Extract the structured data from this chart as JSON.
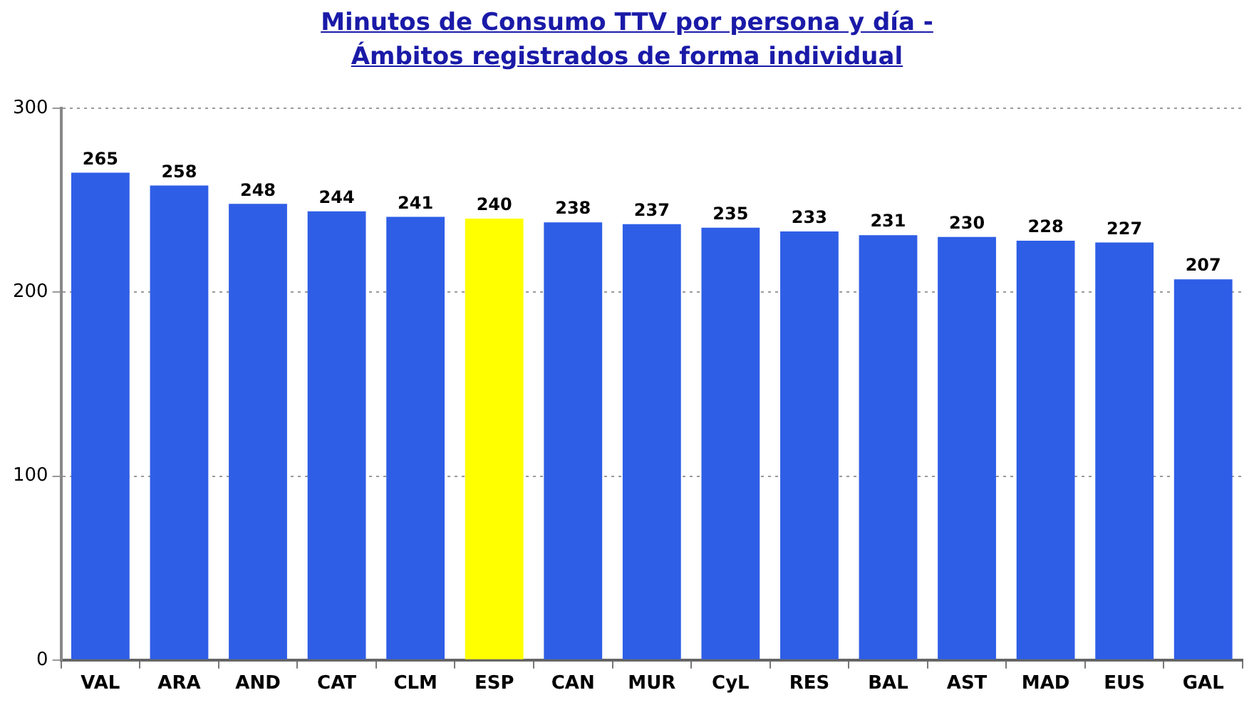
{
  "chart_data": {
    "type": "bar",
    "title": "Minutos de Consumo TTV por persona y día -",
    "subtitle": "Ámbitos registrados de forma individual",
    "categories": [
      "VAL",
      "ARA",
      "AND",
      "CAT",
      "CLM",
      "ESP",
      "CAN",
      "MUR",
      "CyL",
      "RES",
      "BAL",
      "AST",
      "MAD",
      "EUS",
      "GAL"
    ],
    "values": [
      265,
      258,
      248,
      244,
      241,
      240,
      238,
      237,
      235,
      233,
      231,
      230,
      228,
      227,
      207
    ],
    "colors": [
      "#2f5ee6",
      "#2f5ee6",
      "#2f5ee6",
      "#2f5ee6",
      "#2f5ee6",
      "#ffff00",
      "#2f5ee6",
      "#2f5ee6",
      "#2f5ee6",
      "#2f5ee6",
      "#2f5ee6",
      "#2f5ee6",
      "#2f5ee6",
      "#2f5ee6",
      "#2f5ee6"
    ],
    "ylim": [
      0,
      300
    ],
    "yticks": [
      0,
      100,
      200,
      300
    ],
    "grid": "y",
    "data_labels": true
  }
}
